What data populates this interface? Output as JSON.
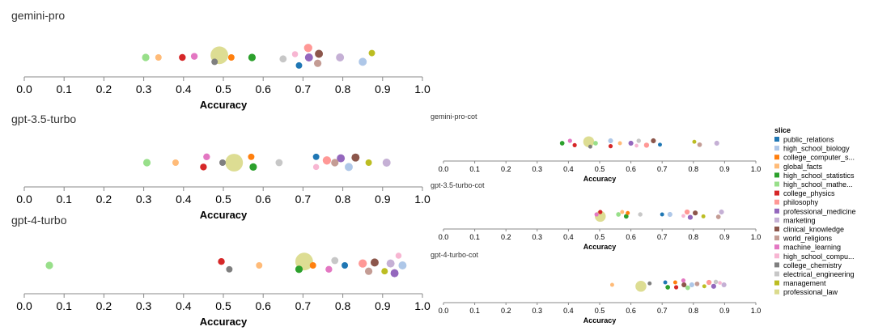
{
  "legend": {
    "title": "slice",
    "items": [
      {
        "label": "public_relations",
        "color": "#1f77b4"
      },
      {
        "label": "high_school_biology",
        "color": "#aec7e8"
      },
      {
        "label": "college_computer_s...",
        "color": "#ff7f0e"
      },
      {
        "label": "global_facts",
        "color": "#ffbb78"
      },
      {
        "label": "high_school_statistics",
        "color": "#2ca02c"
      },
      {
        "label": "high_school_mathe...",
        "color": "#98df8a"
      },
      {
        "label": "college_physics",
        "color": "#d62728"
      },
      {
        "label": "philosophy",
        "color": "#ff9896"
      },
      {
        "label": "professional_medicine",
        "color": "#9467bd"
      },
      {
        "label": "marketing",
        "color": "#c5b0d5"
      },
      {
        "label": "clinical_knowledge",
        "color": "#8c564b"
      },
      {
        "label": "world_religions",
        "color": "#c49c94"
      },
      {
        "label": "machine_learning",
        "color": "#e377c2"
      },
      {
        "label": "high_school_compu...",
        "color": "#f7b6d2"
      },
      {
        "label": "college_chemistry",
        "color": "#7f7f7f"
      },
      {
        "label": "electrical_engineering",
        "color": "#c7c7c7"
      },
      {
        "label": "management",
        "color": "#bcbd22"
      },
      {
        "label": "professional_law",
        "color": "#dbdb8d"
      }
    ]
  },
  "chart_data": [
    {
      "type": "scatter",
      "title": "gemini-pro",
      "xlabel": "Accuracy",
      "xlim": [
        0,
        1
      ],
      "ticks": [
        "0.0",
        "0.1",
        "0.2",
        "0.3",
        "0.4",
        "0.5",
        "0.6",
        "0.7",
        "0.8",
        "0.9",
        "1.0"
      ],
      "points": [
        {
          "slice": "high_school_mathe...",
          "x": 0.305,
          "y": 0.0,
          "size": 1.2
        },
        {
          "slice": "global_facts",
          "x": 0.337,
          "y": 0.0,
          "size": 0.9
        },
        {
          "slice": "college_physics",
          "x": 0.397,
          "y": 0.0,
          "size": 1.0
        },
        {
          "slice": "machine_learning",
          "x": 0.427,
          "y": 0.15,
          "size": 1.0
        },
        {
          "slice": "professional_law",
          "x": 0.49,
          "y": 0.3,
          "size": 4.0
        },
        {
          "slice": "college_chemistry",
          "x": 0.478,
          "y": -0.6,
          "size": 0.9
        },
        {
          "slice": "college_computer_s...",
          "x": 0.52,
          "y": 0.0,
          "size": 0.9
        },
        {
          "slice": "high_school_statistics",
          "x": 0.572,
          "y": 0.0,
          "size": 1.2
        },
        {
          "slice": "electrical_engineering",
          "x": 0.65,
          "y": -0.2,
          "size": 1.1
        },
        {
          "slice": "high_school_compu...",
          "x": 0.68,
          "y": 0.45,
          "size": 0.8
        },
        {
          "slice": "public_relations",
          "x": 0.69,
          "y": -1.1,
          "size": 0.9
        },
        {
          "slice": "philosophy",
          "x": 0.713,
          "y": 1.3,
          "size": 1.5
        },
        {
          "slice": "professional_medicine",
          "x": 0.715,
          "y": 0.0,
          "size": 1.4
        },
        {
          "slice": "world_religions",
          "x": 0.737,
          "y": -0.8,
          "size": 1.2
        },
        {
          "slice": "clinical_knowledge",
          "x": 0.74,
          "y": 0.5,
          "size": 1.4
        },
        {
          "slice": "marketing",
          "x": 0.793,
          "y": 0.0,
          "size": 1.4
        },
        {
          "slice": "high_school_biology",
          "x": 0.85,
          "y": -0.6,
          "size": 1.4
        },
        {
          "slice": "management",
          "x": 0.873,
          "y": 0.6,
          "size": 0.9
        }
      ]
    },
    {
      "type": "scatter",
      "title": "gpt-3.5-turbo",
      "xlabel": "Accuracy",
      "xlim": [
        0,
        1
      ],
      "ticks": [
        "0.0",
        "0.1",
        "0.2",
        "0.3",
        "0.4",
        "0.5",
        "0.6",
        "0.7",
        "0.8",
        "0.9",
        "1.0"
      ],
      "points": [
        {
          "slice": "high_school_mathe...",
          "x": 0.308,
          "y": 0.0,
          "size": 1.2
        },
        {
          "slice": "global_facts",
          "x": 0.38,
          "y": 0.0,
          "size": 0.9
        },
        {
          "slice": "machine_learning",
          "x": 0.458,
          "y": 0.8,
          "size": 1.0
        },
        {
          "slice": "college_physics",
          "x": 0.45,
          "y": -0.6,
          "size": 1.0
        },
        {
          "slice": "college_chemistry",
          "x": 0.498,
          "y": 0.0,
          "size": 0.9
        },
        {
          "slice": "professional_law",
          "x": 0.527,
          "y": 0.0,
          "size": 4.0
        },
        {
          "slice": "college_computer_s...",
          "x": 0.57,
          "y": 0.8,
          "size": 0.9
        },
        {
          "slice": "high_school_statistics",
          "x": 0.575,
          "y": -0.6,
          "size": 1.2
        },
        {
          "slice": "electrical_engineering",
          "x": 0.64,
          "y": 0.0,
          "size": 1.1
        },
        {
          "slice": "public_relations",
          "x": 0.733,
          "y": 0.8,
          "size": 0.9
        },
        {
          "slice": "high_school_compu...",
          "x": 0.733,
          "y": -0.6,
          "size": 0.8
        },
        {
          "slice": "philosophy",
          "x": 0.76,
          "y": 0.3,
          "size": 1.5
        },
        {
          "slice": "world_religions",
          "x": 0.78,
          "y": 0.0,
          "size": 1.2
        },
        {
          "slice": "professional_medicine",
          "x": 0.795,
          "y": 0.6,
          "size": 1.4
        },
        {
          "slice": "high_school_biology",
          "x": 0.815,
          "y": -0.6,
          "size": 1.4
        },
        {
          "slice": "clinical_knowledge",
          "x": 0.832,
          "y": 0.7,
          "size": 1.4
        },
        {
          "slice": "management",
          "x": 0.865,
          "y": 0.0,
          "size": 0.9
        },
        {
          "slice": "marketing",
          "x": 0.91,
          "y": 0.0,
          "size": 1.4
        }
      ]
    },
    {
      "type": "scatter",
      "title": "gpt-4-turbo",
      "xlabel": "Accuracy",
      "xlim": [
        0,
        1
      ],
      "ticks": [
        "0.0",
        "0.1",
        "0.2",
        "0.3",
        "0.4",
        "0.5",
        "0.6",
        "0.7",
        "0.8",
        "0.9",
        "1.0"
      ],
      "points": [
        {
          "slice": "high_school_mathe...",
          "x": 0.063,
          "y": 0.0,
          "size": 1.2
        },
        {
          "slice": "college_physics",
          "x": 0.495,
          "y": 0.4,
          "size": 1.0
        },
        {
          "slice": "college_chemistry",
          "x": 0.515,
          "y": -0.4,
          "size": 0.9
        },
        {
          "slice": "global_facts",
          "x": 0.59,
          "y": 0.0,
          "size": 0.9
        },
        {
          "slice": "professional_law",
          "x": 0.703,
          "y": 0.4,
          "size": 4.0
        },
        {
          "slice": "high_school_statistics",
          "x": 0.69,
          "y": -0.4,
          "size": 1.2
        },
        {
          "slice": "college_computer_s...",
          "x": 0.725,
          "y": 0.0,
          "size": 0.9
        },
        {
          "slice": "machine_learning",
          "x": 0.765,
          "y": -0.4,
          "size": 1.0
        },
        {
          "slice": "electrical_engineering",
          "x": 0.78,
          "y": 0.5,
          "size": 1.1
        },
        {
          "slice": "public_relations",
          "x": 0.805,
          "y": 0.0,
          "size": 0.9
        },
        {
          "slice": "philosophy",
          "x": 0.85,
          "y": 0.2,
          "size": 1.5
        },
        {
          "slice": "world_religions",
          "x": 0.865,
          "y": -0.6,
          "size": 1.2
        },
        {
          "slice": "clinical_knowledge",
          "x": 0.88,
          "y": 0.3,
          "size": 1.4
        },
        {
          "slice": "management",
          "x": 0.905,
          "y": -0.6,
          "size": 0.9
        },
        {
          "slice": "marketing",
          "x": 0.92,
          "y": 0.2,
          "size": 1.4
        },
        {
          "slice": "professional_medicine",
          "x": 0.93,
          "y": -0.8,
          "size": 1.4
        },
        {
          "slice": "high_school_compu...",
          "x": 0.94,
          "y": 1.0,
          "size": 0.8
        },
        {
          "slice": "high_school_biology",
          "x": 0.95,
          "y": 0.0,
          "size": 1.4
        }
      ]
    },
    {
      "type": "scatter",
      "title": "gemini-pro-cot",
      "xlabel": "Accuracy",
      "xlim": [
        0,
        1
      ],
      "ticks": [
        "0.0",
        "0.1",
        "0.2",
        "0.3",
        "0.4",
        "0.5",
        "0.6",
        "0.7",
        "0.8",
        "0.9",
        "1.0"
      ],
      "points": [
        {
          "slice": "high_school_statistics",
          "x": 0.38,
          "y": 0.0,
          "size": 1.2
        },
        {
          "slice": "machine_learning",
          "x": 0.405,
          "y": 0.5,
          "size": 1.0
        },
        {
          "slice": "college_physics",
          "x": 0.42,
          "y": -0.4,
          "size": 1.0
        },
        {
          "slice": "professional_law",
          "x": 0.465,
          "y": 0.3,
          "size": 4.0
        },
        {
          "slice": "college_chemistry",
          "x": 0.47,
          "y": -0.7,
          "size": 0.9
        },
        {
          "slice": "high_school_mathe...",
          "x": 0.487,
          "y": 0.0,
          "size": 1.2
        },
        {
          "slice": "high_school_biology",
          "x": 0.535,
          "y": 0.5,
          "size": 1.4
        },
        {
          "slice": "college_physics",
          "x": 0.535,
          "y": -0.6,
          "size": 1.0
        },
        {
          "slice": "global_facts",
          "x": 0.565,
          "y": 0.0,
          "size": 0.9
        },
        {
          "slice": "professional_medicine",
          "x": 0.6,
          "y": 0.0,
          "size": 1.4
        },
        {
          "slice": "high_school_compu...",
          "x": 0.618,
          "y": -0.5,
          "size": 0.8
        },
        {
          "slice": "electrical_engineering",
          "x": 0.625,
          "y": 0.5,
          "size": 1.1
        },
        {
          "slice": "philosophy",
          "x": 0.65,
          "y": -0.4,
          "size": 1.5
        },
        {
          "slice": "clinical_knowledge",
          "x": 0.672,
          "y": 0.5,
          "size": 1.4
        },
        {
          "slice": "public_relations",
          "x": 0.693,
          "y": -0.3,
          "size": 0.9
        },
        {
          "slice": "management",
          "x": 0.803,
          "y": 0.3,
          "size": 0.9
        },
        {
          "slice": "world_religions",
          "x": 0.82,
          "y": -0.3,
          "size": 1.2
        },
        {
          "slice": "marketing",
          "x": 0.875,
          "y": 0.0,
          "size": 1.4
        }
      ]
    },
    {
      "type": "scatter",
      "title": "gpt-3.5-turbo-cot",
      "xlabel": "Accuracy",
      "xlim": [
        0,
        1
      ],
      "ticks": [
        "0.0",
        "0.1",
        "0.2",
        "0.3",
        "0.4",
        "0.5",
        "0.6",
        "0.7",
        "0.8",
        "0.9",
        "1.0"
      ],
      "points": [
        {
          "slice": "college_physics",
          "x": 0.502,
          "y": 0.5,
          "size": 1.0
        },
        {
          "slice": "machine_learning",
          "x": 0.49,
          "y": 0.0,
          "size": 1.0
        },
        {
          "slice": "professional_law",
          "x": 0.502,
          "y": -0.4,
          "size": 4.0
        },
        {
          "slice": "global_facts",
          "x": 0.572,
          "y": 0.5,
          "size": 0.9
        },
        {
          "slice": "high_school_mathe...",
          "x": 0.56,
          "y": 0.0,
          "size": 1.2
        },
        {
          "slice": "college_computer_s...",
          "x": 0.59,
          "y": 0.3,
          "size": 0.9
        },
        {
          "slice": "high_school_statistics",
          "x": 0.585,
          "y": -0.4,
          "size": 1.2
        },
        {
          "slice": "electrical_engineering",
          "x": 0.63,
          "y": 0.0,
          "size": 1.1
        },
        {
          "slice": "public_relations",
          "x": 0.7,
          "y": 0.0,
          "size": 0.9
        },
        {
          "slice": "high_school_biology",
          "x": 0.725,
          "y": 0.0,
          "size": 1.4
        },
        {
          "slice": "philosophy",
          "x": 0.78,
          "y": 0.5,
          "size": 1.5
        },
        {
          "slice": "high_school_compu...",
          "x": 0.768,
          "y": -0.3,
          "size": 0.8
        },
        {
          "slice": "professional_medicine",
          "x": 0.79,
          "y": -0.6,
          "size": 1.4
        },
        {
          "slice": "clinical_knowledge",
          "x": 0.806,
          "y": 0.3,
          "size": 1.4
        },
        {
          "slice": "management",
          "x": 0.832,
          "y": -0.4,
          "size": 0.9
        },
        {
          "slice": "world_religions",
          "x": 0.88,
          "y": -0.5,
          "size": 1.2
        },
        {
          "slice": "marketing",
          "x": 0.89,
          "y": 0.5,
          "size": 1.4
        }
      ]
    },
    {
      "type": "scatter",
      "title": "gpt-4-turbo-cot",
      "xlabel": "Accuracy",
      "xlim": [
        0,
        1
      ],
      "ticks": [
        "0.0",
        "0.1",
        "0.2",
        "0.3",
        "0.4",
        "0.5",
        "0.6",
        "0.7",
        "0.8",
        "0.9",
        "1.0"
      ],
      "points": [
        {
          "slice": "global_facts",
          "x": 0.54,
          "y": 0.0,
          "size": 0.9
        },
        {
          "slice": "professional_law",
          "x": 0.632,
          "y": -0.3,
          "size": 4.0
        },
        {
          "slice": "college_chemistry",
          "x": 0.66,
          "y": 0.3,
          "size": 0.9
        },
        {
          "slice": "public_relations",
          "x": 0.71,
          "y": 0.5,
          "size": 0.9
        },
        {
          "slice": "high_school_statistics",
          "x": 0.718,
          "y": -0.5,
          "size": 1.2
        },
        {
          "slice": "college_computer_s...",
          "x": 0.742,
          "y": 0.5,
          "size": 0.9
        },
        {
          "slice": "college_physics",
          "x": 0.745,
          "y": -0.5,
          "size": 1.0
        },
        {
          "slice": "machine_learning",
          "x": 0.768,
          "y": 0.9,
          "size": 1.0
        },
        {
          "slice": "clinical_knowledge",
          "x": 0.77,
          "y": 0.0,
          "size": 1.4
        },
        {
          "slice": "high_school_mathe...",
          "x": 0.782,
          "y": -0.6,
          "size": 1.2
        },
        {
          "slice": "high_school_biology",
          "x": 0.795,
          "y": 0.0,
          "size": 1.4
        },
        {
          "slice": "world_religions",
          "x": 0.812,
          "y": 0.2,
          "size": 1.2
        },
        {
          "slice": "management",
          "x": 0.835,
          "y": -0.3,
          "size": 0.9
        },
        {
          "slice": "philosophy",
          "x": 0.85,
          "y": 0.5,
          "size": 1.5
        },
        {
          "slice": "professional_medicine",
          "x": 0.865,
          "y": -0.3,
          "size": 1.4
        },
        {
          "slice": "electrical_engineering",
          "x": 0.872,
          "y": 0.6,
          "size": 1.1
        },
        {
          "slice": "high_school_compu...",
          "x": 0.885,
          "y": 0.4,
          "size": 0.8
        },
        {
          "slice": "marketing",
          "x": 0.898,
          "y": 0.0,
          "size": 1.4
        }
      ]
    }
  ]
}
